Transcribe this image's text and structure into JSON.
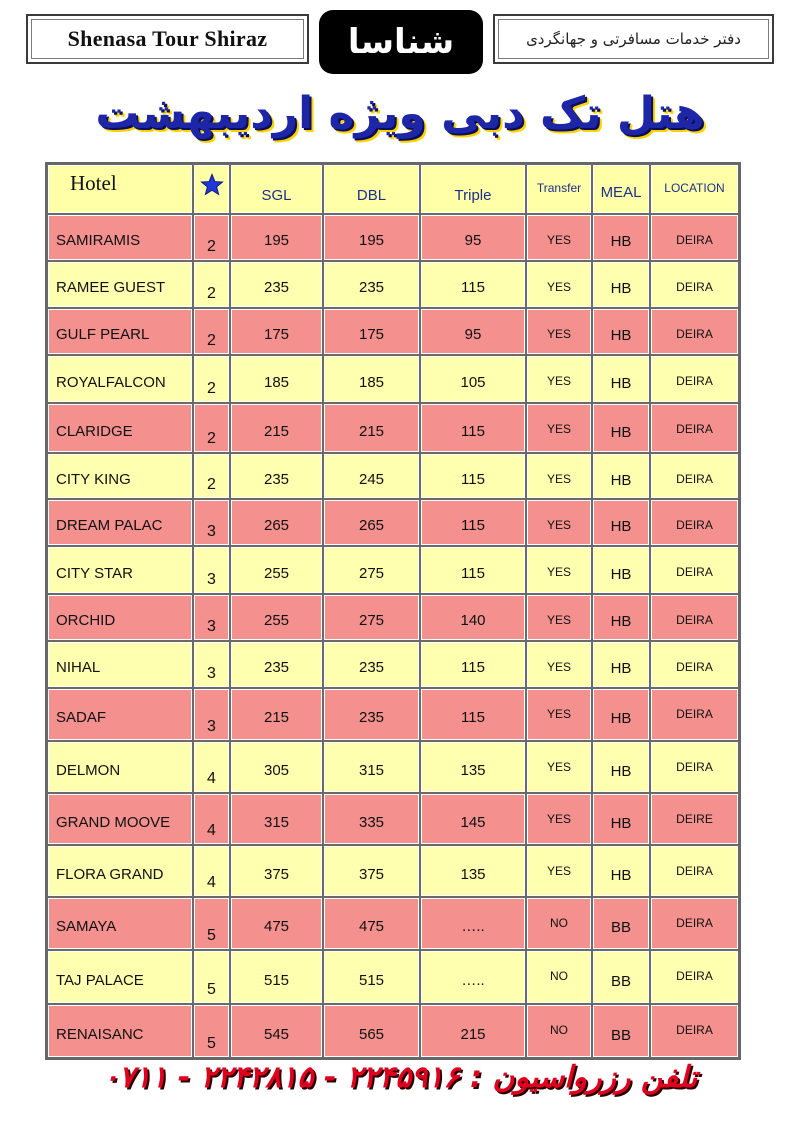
{
  "header": {
    "left_text": "Shenasa Tour Shiraz",
    "logo_text": "شناسا",
    "right_text": "دفتر خدمات مسافرتی و جهانگردی"
  },
  "title": "هتل تک دبی ویژه اردیبهشت",
  "table": {
    "columns": {
      "hotel": "Hotel",
      "star_icon": "star-icon",
      "sgl": "SGL",
      "dbl": "DBL",
      "triple": "Triple",
      "transfer": "Transfer",
      "meal": "MEAL",
      "location": "LOCATION"
    },
    "rows": [
      {
        "hotel": "SAMIRAMIS",
        "stars": "2",
        "sgl": "195",
        "dbl": "195",
        "triple": "95",
        "transfer": "YES",
        "meal": "HB",
        "location": "DEIRA"
      },
      {
        "hotel": "RAMEE GUEST",
        "stars": "2",
        "sgl": "235",
        "dbl": "235",
        "triple": "115",
        "transfer": "YES",
        "meal": "HB",
        "location": "DEIRA"
      },
      {
        "hotel": "GULF PEARL",
        "stars": "2",
        "sgl": "175",
        "dbl": "175",
        "triple": "95",
        "transfer": "YES",
        "meal": "HB",
        "location": "DEIRA"
      },
      {
        "hotel": "ROYALFALCON",
        "stars": "2",
        "sgl": "185",
        "dbl": "185",
        "triple": "105",
        "transfer": "YES",
        "meal": "HB",
        "location": "DEIRA"
      },
      {
        "hotel": "CLARIDGE",
        "stars": "2",
        "sgl": "215",
        "dbl": "215",
        "triple": "115",
        "transfer": "YES",
        "meal": "HB",
        "location": "DEIRA"
      },
      {
        "hotel": "CITY KING",
        "stars": "2",
        "sgl": "235",
        "dbl": "245",
        "triple": "115",
        "transfer": "YES",
        "meal": "HB",
        "location": "DEIRA"
      },
      {
        "hotel": "DREAM PALAC",
        "stars": "3",
        "sgl": "265",
        "dbl": "265",
        "triple": "115",
        "transfer": "YES",
        "meal": "HB",
        "location": "DEIRA"
      },
      {
        "hotel": "CITY STAR",
        "stars": "3",
        "sgl": "255",
        "dbl": "275",
        "triple": "115",
        "transfer": "YES",
        "meal": "HB",
        "location": "DEIRA"
      },
      {
        "hotel": "ORCHID",
        "stars": "3",
        "sgl": "255",
        "dbl": "275",
        "triple": "140",
        "transfer": "YES",
        "meal": "HB",
        "location": "DEIRA"
      },
      {
        "hotel": "NIHAL",
        "stars": "3",
        "sgl": "235",
        "dbl": "235",
        "triple": "115",
        "transfer": "YES",
        "meal": "HB",
        "location": "DEIRA"
      },
      {
        "hotel": "SADAF",
        "stars": "3",
        "sgl": "215",
        "dbl": "235",
        "triple": "115",
        "transfer": "YES",
        "meal": "HB",
        "location": "DEIRA"
      },
      {
        "hotel": "DELMON",
        "stars": "4",
        "sgl": "305",
        "dbl": "315",
        "triple": "135",
        "transfer": "YES",
        "meal": "HB",
        "location": "DEIRA"
      },
      {
        "hotel": "GRAND MOOVE",
        "stars": "4",
        "sgl": "315",
        "dbl": "335",
        "triple": "145",
        "transfer": "YES",
        "meal": "HB",
        "location": "DEIRE"
      },
      {
        "hotel": "FLORA GRAND",
        "stars": "4",
        "sgl": "375",
        "dbl": "375",
        "triple": "135",
        "transfer": "YES",
        "meal": "HB",
        "location": "DEIRA"
      },
      {
        "hotel": "SAMAYA",
        "stars": "5",
        "sgl": "475",
        "dbl": "475",
        "triple": "…..",
        "transfer": "NO",
        "meal": "BB",
        "location": "DEIRA"
      },
      {
        "hotel": "TAJ PALACE",
        "stars": "5",
        "sgl": "515",
        "dbl": "515",
        "triple": "…..",
        "transfer": "NO",
        "meal": "BB",
        "location": "DEIRA"
      },
      {
        "hotel": "RENAISANC",
        "stars": "5",
        "sgl": "545",
        "dbl": "565",
        "triple": "215",
        "transfer": "NO",
        "meal": "BB",
        "location": "DEIRA"
      }
    ]
  },
  "footer": "تلفن رزرواسیون : ۲۲۴۵۹۱۶ - ۲۲۴۲۸۱۵ - ۰۷۱۱",
  "colors": {
    "row_pink": "#f4908e",
    "row_yellow": "#ffffb0",
    "header_text": "#1c2f8a",
    "title": "#1e26a8",
    "footer": "#e0001e"
  }
}
